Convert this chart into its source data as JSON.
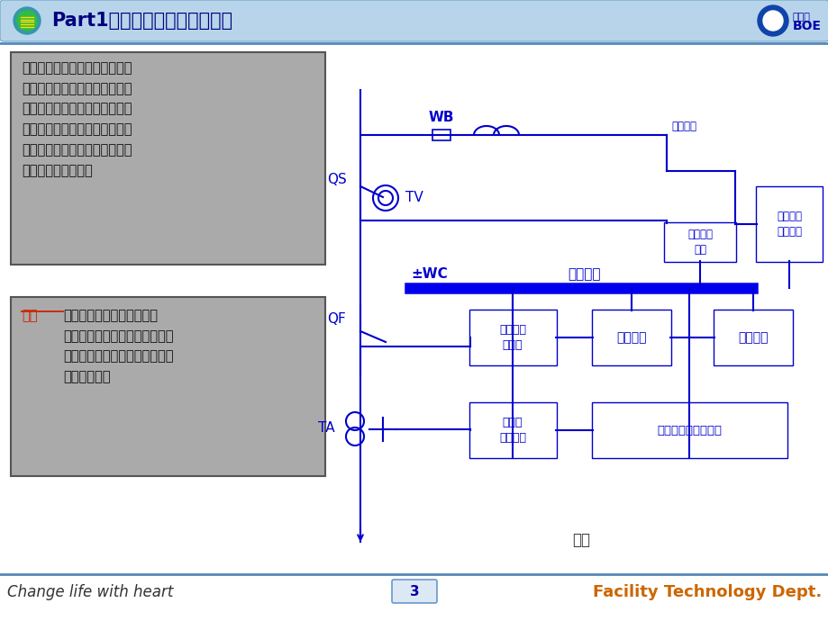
{
  "title": "Part1：电气二次回路基础知识",
  "bg_color": "#ffffff",
  "header_text_color": "#000080",
  "circuit_color": "#0000cc",
  "box1_text": "在图一所有仪表和继电器都是以\n整体形式的设备图形符号表示，\n不画出内部拉线，而只画出接点\n的连接。并将二次部分的电流回\n路、电压回路、直流回路和一次\n回路图绘制在一起。",
  "box2_text_red": "特点",
  "box2_text_black": "：能使看图人对整个装置的\n构成有一个整体概念，可清楚了\n解二次回路各设备间的电气联系\n和动作原理。",
  "footer_left": "Change life with heart",
  "footer_center": "3",
  "footer_right": "Facility Technology Dept.",
  "fig_label": "图一",
  "labels": {
    "WB": "WB",
    "QS": "QS",
    "TV": "TV",
    "QF": "QF",
    "TA": "TA",
    "WC": "±WC",
    "dc_bus": "直流母线",
    "other_power": "其他用电",
    "dc_op": "直流操作\n电源",
    "dc_ins": "直流绝缘\n监察装置",
    "breaker": "断路器控\n制回路",
    "signal": "信号系统",
    "protect": "保护回路",
    "transformer": "互感器\n二次回路",
    "elec_meter": "电参数测量仪表回路"
  }
}
